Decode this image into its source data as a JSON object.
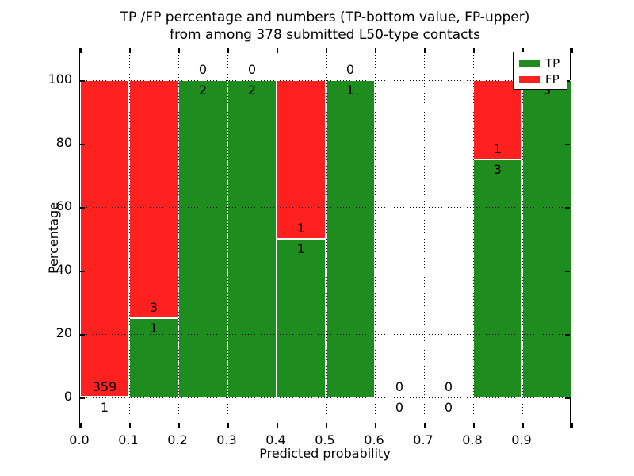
{
  "title": {
    "line1": "TP /FP percentage and numbers (TP-bottom value, FP-upper)",
    "line2": "from among 378 submitted L50-type contacts"
  },
  "axes": {
    "xlabel": "Predicted probability",
    "ylabel": "Percentage"
  },
  "legend": {
    "position": "upper right",
    "items": [
      {
        "label": "TP",
        "color": "#1f8c1f"
      },
      {
        "label": "FP",
        "color": "#ff2020"
      }
    ]
  },
  "chart_data": {
    "type": "bar",
    "stacked": true,
    "title": "TP /FP percentage and numbers (TP-bottom value, FP-upper) from among 378 submitted L50-type contacts",
    "xlabel": "Predicted probability",
    "ylabel": "Percentage",
    "xlim": [
      0.0,
      1.0
    ],
    "ylim": [
      -10,
      110
    ],
    "xticks": [
      "0.0",
      "0.1",
      "0.2",
      "0.3",
      "0.4",
      "0.5",
      "0.6",
      "0.7",
      "0.8",
      "0.9"
    ],
    "yticks": [
      0,
      20,
      40,
      60,
      80,
      100
    ],
    "grid": true,
    "grid_style": "dotted",
    "total_contacts": 378,
    "series": [
      {
        "name": "TP",
        "color": "#1f8c1f"
      },
      {
        "name": "FP",
        "color": "#ff2020"
      }
    ],
    "bins": [
      {
        "range": [
          0.0,
          0.1
        ],
        "tp": 1,
        "fp": 359,
        "tp_pct": 0.28,
        "bar": true
      },
      {
        "range": [
          0.1,
          0.2
        ],
        "tp": 1,
        "fp": 3,
        "tp_pct": 25,
        "bar": true
      },
      {
        "range": [
          0.2,
          0.3
        ],
        "tp": 2,
        "fp": 0,
        "tp_pct": 100,
        "bar": true
      },
      {
        "range": [
          0.3,
          0.4
        ],
        "tp": 2,
        "fp": 0,
        "tp_pct": 100,
        "bar": true
      },
      {
        "range": [
          0.4,
          0.5
        ],
        "tp": 1,
        "fp": 1,
        "tp_pct": 50,
        "bar": true
      },
      {
        "range": [
          0.5,
          0.6
        ],
        "tp": 1,
        "fp": 0,
        "tp_pct": 100,
        "bar": true
      },
      {
        "range": [
          0.6,
          0.7
        ],
        "tp": 0,
        "fp": 0,
        "tp_pct": 0,
        "bar": false
      },
      {
        "range": [
          0.7,
          0.8
        ],
        "tp": 0,
        "fp": 0,
        "tp_pct": 0,
        "bar": false
      },
      {
        "range": [
          0.8,
          0.9
        ],
        "tp": 3,
        "fp": 1,
        "tp_pct": 75,
        "bar": true
      },
      {
        "range": [
          0.9,
          1.0
        ],
        "tp": 3,
        "fp": 0,
        "tp_pct": 100,
        "bar": true
      }
    ]
  }
}
